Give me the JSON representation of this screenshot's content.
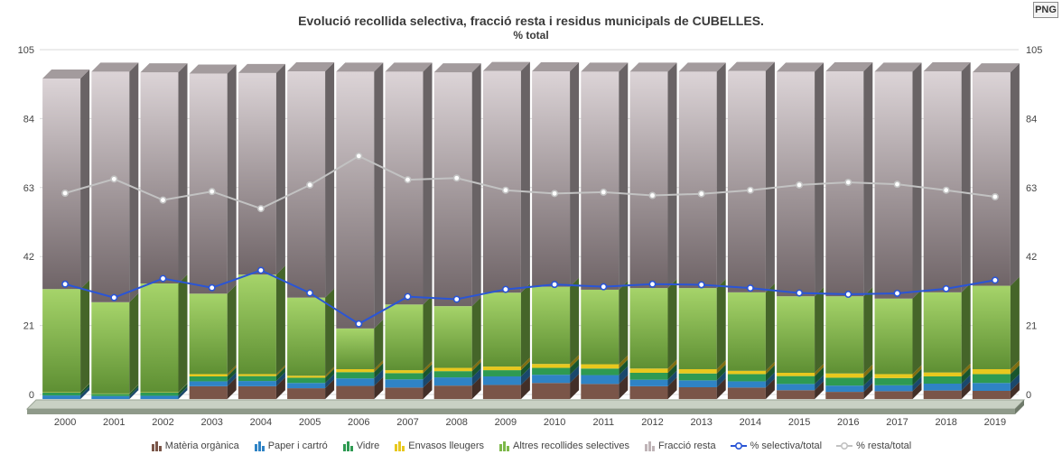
{
  "export_button": {
    "label": "PNG"
  },
  "chart_data": {
    "type": "bar",
    "stacked": true,
    "title": "Evolució recollida selectiva, fracció resta i residus municipals de CUBELLES.",
    "subtitle": "% total",
    "categories": [
      "2000",
      "2001",
      "2002",
      "2003",
      "2004",
      "2005",
      "2006",
      "2007",
      "2008",
      "2009",
      "2010",
      "2011",
      "2012",
      "2013",
      "2014",
      "2015",
      "2016",
      "2017",
      "2018",
      "2019"
    ],
    "ylim": [
      0,
      105
    ],
    "yticks": [
      0,
      21,
      42,
      63,
      84,
      105
    ],
    "grid": true,
    "legend_position": "bottom",
    "series": [
      {
        "name": "Matèria orgànica",
        "kind": "bar",
        "color": "#7a5548",
        "values": [
          0,
          0,
          0,
          3.9,
          3.9,
          3.3,
          4.0,
          3.5,
          4.1,
          4.3,
          4.9,
          4.6,
          3.9,
          3.6,
          3.5,
          2.7,
          2.2,
          2.4,
          2.6,
          2.5
        ]
      },
      {
        "name": "Paper i cartró",
        "kind": "bar",
        "color": "#2f83c5",
        "values": [
          1.1,
          0.9,
          1.0,
          1.5,
          1.6,
          1.6,
          2.3,
          2.5,
          2.5,
          2.6,
          2.5,
          2.7,
          2.0,
          2.1,
          1.9,
          1.9,
          1.9,
          1.8,
          2.1,
          2.4
        ]
      },
      {
        "name": "Vidre",
        "kind": "bar",
        "color": "#2e9a52",
        "values": [
          0.9,
          0.7,
          1.0,
          1.5,
          1.5,
          1.6,
          1.9,
          1.9,
          1.9,
          1.9,
          2.1,
          2.0,
          2.1,
          2.1,
          2.2,
          2.4,
          2.4,
          2.2,
          2.2,
          2.7
        ]
      },
      {
        "name": "Envasos lleugers",
        "kind": "bar",
        "color": "#e8c81e",
        "values": [
          0.1,
          0.1,
          0.1,
          0.7,
          0.6,
          0.6,
          0.9,
          0.9,
          1.0,
          1.1,
          1.2,
          1.3,
          1.3,
          1.3,
          1.0,
          1.0,
          1.3,
          1.2,
          1.2,
          1.5
        ]
      },
      {
        "name": "Altres recollides selectives",
        "kind": "bar",
        "color": "#7db84a",
        "values": [
          31.4,
          27.8,
          33.1,
          24.5,
          30.3,
          23.8,
          12.4,
          20.0,
          18.8,
          22.5,
          23.5,
          22.7,
          24.5,
          24.7,
          23.9,
          23.3,
          23.5,
          23.0,
          24.4,
          25.4
        ]
      },
      {
        "name": "Fracció resta",
        "kind": "bar",
        "color": "#bfb4b7",
        "values": [
          64.1,
          70.2,
          64.3,
          67.0,
          61.4,
          68.9,
          78.2,
          70.9,
          71.2,
          67.5,
          65.6,
          66.4,
          65.9,
          65.9,
          67.4,
          68.4,
          68.5,
          69.1,
          67.3,
          65.0
        ]
      },
      {
        "name": "% selectiva/total",
        "kind": "line",
        "color": "#2a55d6",
        "values": [
          33.6,
          29.5,
          35.3,
          32.5,
          37.8,
          30.9,
          21.5,
          29.8,
          29.0,
          32.0,
          33.5,
          32.8,
          33.6,
          33.4,
          32.4,
          30.9,
          30.5,
          30.8,
          32.2,
          34.8
        ]
      },
      {
        "name": "% resta/total",
        "kind": "line",
        "color": "#c2c2c2",
        "values": [
          61.3,
          65.6,
          59.2,
          61.8,
          56.6,
          63.8,
          72.6,
          65.4,
          65.9,
          62.2,
          61.2,
          61.6,
          60.6,
          61.1,
          62.2,
          63.8,
          64.6,
          64.0,
          62.2,
          60.2
        ]
      }
    ]
  }
}
